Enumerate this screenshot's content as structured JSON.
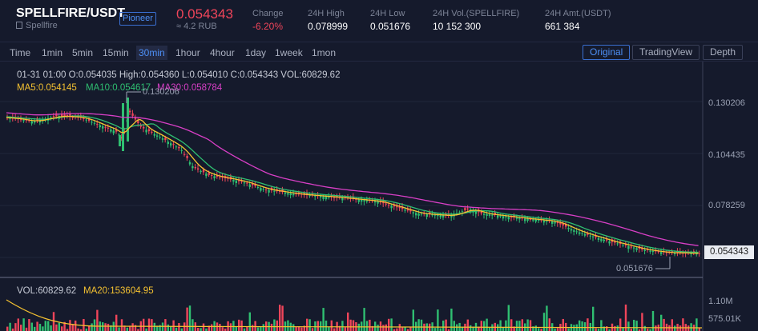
{
  "header": {
    "pair": "SPELLFIRE/USDT",
    "badge": "Pioneer",
    "subname": "Spellfire",
    "price": "0.054343",
    "price_rub": "≈ 4.2 RUB",
    "stats": [
      {
        "label": "Change",
        "value": "-6.20%"
      },
      {
        "label": "24H High",
        "value": "0.078999"
      },
      {
        "label": "24H Low",
        "value": "0.051676"
      },
      {
        "label": "24H Vol.(SPELLFIRE)",
        "value": "10 152 300"
      },
      {
        "label": "24H Amt.(USDT)",
        "value": "661 384"
      }
    ]
  },
  "toolbar": {
    "timeframes": [
      "Time",
      "1min",
      "5min",
      "15min",
      "30min",
      "1hour",
      "4hour",
      "1day",
      "1week",
      "1mon"
    ],
    "active_timeframe": "30min",
    "views": [
      "Original",
      "TradingView",
      "Depth"
    ],
    "active_view": "Original"
  },
  "legend": {
    "ohlc": "01-31 01:00  O:0.054035  High:0.054360  L:0.054010  C:0.054343  VOL:60829.62",
    "ma5": "MA5:0.054145",
    "ma10": "MA10:0.054617",
    "ma30": "MA30:0.058784"
  },
  "volume_legend": {
    "vol": "VOL:60829.62",
    "ma20": "MA20:153604.95"
  },
  "chart_data": {
    "type": "candlestick",
    "y_ticks": [
      "0.130206",
      "0.104435",
      "0.078259"
    ],
    "current_price": "0.054343",
    "annotations": {
      "high": "0.130206",
      "low": "0.051676"
    },
    "volume_ticks": [
      "1.10M",
      "575.01K"
    ],
    "colors": {
      "up": "#2fbf71",
      "down": "#f0455a",
      "ma5": "#f5c231",
      "ma10": "#2fbf71",
      "ma30": "#d83fc6"
    }
  }
}
